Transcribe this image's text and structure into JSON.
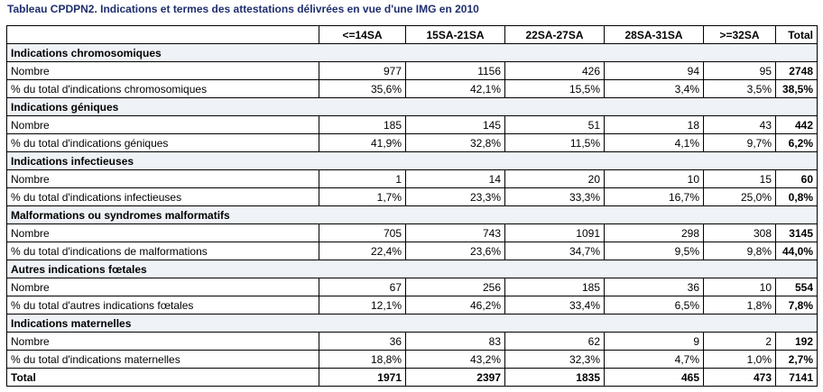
{
  "caption": "Tableau CPDPN2. Indications et termes des attestations délivrées en vue d'une IMG en 2010",
  "columns": [
    "<=14SA",
    "15SA-21SA",
    "22SA-27SA",
    "28SA-31SA",
    ">=32SA",
    "Total"
  ],
  "groups": [
    {
      "title": "Indications chromosomiques",
      "rows": [
        {
          "label": "Nombre",
          "values": [
            "977",
            "1156",
            "426",
            "94",
            "95"
          ],
          "total": "2748"
        },
        {
          "label": "% du total d'indications chromosomiques",
          "values": [
            "35,6%",
            "42,1%",
            "15,5%",
            "3,4%",
            "3,5%"
          ],
          "total": "38,5%"
        }
      ]
    },
    {
      "title": "Indications géniques",
      "rows": [
        {
          "label": "Nombre",
          "values": [
            "185",
            "145",
            "51",
            "18",
            "43"
          ],
          "total": "442"
        },
        {
          "label": "% du total d'indications géniques",
          "values": [
            "41,9%",
            "32,8%",
            "11,5%",
            "4,1%",
            "9,7%"
          ],
          "total": "6,2%"
        }
      ]
    },
    {
      "title": "Indications infectieuses",
      "rows": [
        {
          "label": "Nombre",
          "values": [
            "1",
            "14",
            "20",
            "10",
            "15"
          ],
          "total": "60"
        },
        {
          "label": "% du total d'indications infectieuses",
          "values": [
            "1,7%",
            "23,3%",
            "33,3%",
            "16,7%",
            "25,0%"
          ],
          "total": "0,8%"
        }
      ]
    },
    {
      "title": "Malformations ou syndromes malformatifs",
      "rows": [
        {
          "label": "Nombre",
          "values": [
            "705",
            "743",
            "1091",
            "298",
            "308"
          ],
          "total": "3145"
        },
        {
          "label": "% du total d'indications de malformations",
          "values": [
            "22,4%",
            "23,6%",
            "34,7%",
            "9,5%",
            "9,8%"
          ],
          "total": "44,0%"
        }
      ]
    },
    {
      "title": "Autres indications fœtales",
      "rows": [
        {
          "label": "Nombre",
          "values": [
            "67",
            "256",
            "185",
            "36",
            "10"
          ],
          "total": "554"
        },
        {
          "label": "% du total d'autres indications fœtales",
          "values": [
            "12,1%",
            "46,2%",
            "33,4%",
            "6,5%",
            "1,8%"
          ],
          "total": "7,8%"
        }
      ]
    },
    {
      "title": "Indications maternelles",
      "rows": [
        {
          "label": "Nombre",
          "values": [
            "36",
            "83",
            "62",
            "9",
            "2"
          ],
          "total": "192"
        },
        {
          "label": "% du total d'indications maternelles",
          "values": [
            "18,8%",
            "43,2%",
            "32,3%",
            "4,7%",
            "1,0%"
          ],
          "total": "2,7%"
        }
      ]
    }
  ],
  "total_row": {
    "label": "Total",
    "values": [
      "1971",
      "2397",
      "1835",
      "465",
      "473"
    ],
    "total": "7141"
  },
  "colors": {
    "caption": "#1f2f6e",
    "group_bg": "#eff2f6",
    "border": "#000000"
  }
}
